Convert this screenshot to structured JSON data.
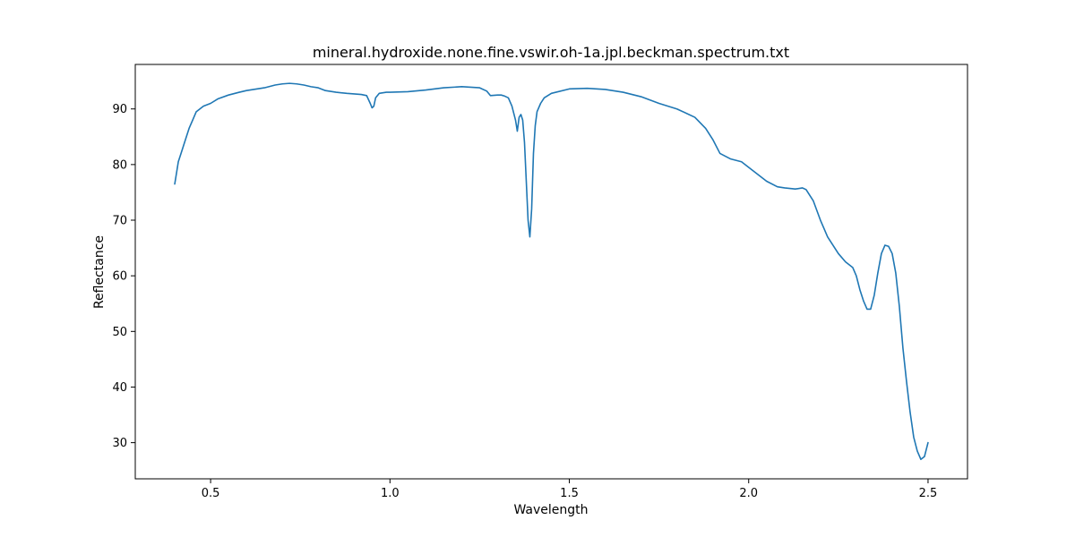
{
  "chart_data": {
    "type": "line",
    "title": "mineral.hydroxide.none.fine.vswir.oh-1a.jpl.beckman.spectrum.txt",
    "xlabel": "Wavelength",
    "ylabel": "Reflectance",
    "xlim": [
      0.29,
      2.61
    ],
    "ylim": [
      23.5,
      98.0
    ],
    "xticks": [
      0.5,
      1.0,
      1.5,
      2.0,
      2.5
    ],
    "xtick_labels": [
      "0.5",
      "1.0",
      "1.5",
      "2.0",
      "2.5"
    ],
    "yticks": [
      30,
      40,
      50,
      60,
      70,
      80,
      90
    ],
    "ytick_labels": [
      "30",
      "40",
      "50",
      "60",
      "70",
      "80",
      "90"
    ],
    "grid": false,
    "legend": "none",
    "line_color": "#1f77b4",
    "series": [
      {
        "x": [
          0.4,
          0.405,
          0.41,
          0.42,
          0.43,
          0.44,
          0.45,
          0.46,
          0.47,
          0.48,
          0.5,
          0.52,
          0.55,
          0.58,
          0.6,
          0.62,
          0.65,
          0.68,
          0.7,
          0.72,
          0.74,
          0.76,
          0.78,
          0.8,
          0.82,
          0.85,
          0.88,
          0.9,
          0.92,
          0.935,
          0.945,
          0.95,
          0.955,
          0.96,
          0.97,
          0.99,
          1.0,
          1.05,
          1.1,
          1.15,
          1.2,
          1.25,
          1.27,
          1.28,
          1.3,
          1.31,
          1.32,
          1.33,
          1.34,
          1.35,
          1.355,
          1.36,
          1.365,
          1.37,
          1.375,
          1.38,
          1.385,
          1.39,
          1.395,
          1.4,
          1.405,
          1.41,
          1.42,
          1.43,
          1.45,
          1.5,
          1.55,
          1.6,
          1.65,
          1.7,
          1.75,
          1.8,
          1.85,
          1.88,
          1.9,
          1.92,
          1.95,
          1.98,
          2.0,
          2.05,
          2.08,
          2.1,
          2.13,
          2.15,
          2.16,
          2.18,
          2.2,
          2.22,
          2.25,
          2.27,
          2.29,
          2.3,
          2.31,
          2.32,
          2.33,
          2.34,
          2.35,
          2.36,
          2.37,
          2.38,
          2.39,
          2.4,
          2.41,
          2.42,
          2.43,
          2.44,
          2.45,
          2.46,
          2.47,
          2.48,
          2.49,
          2.5
        ],
        "y": [
          76.5,
          78.5,
          80.5,
          82.5,
          84.5,
          86.5,
          88.0,
          89.5,
          90.0,
          90.5,
          91.0,
          91.8,
          92.5,
          93.0,
          93.3,
          93.5,
          93.8,
          94.3,
          94.5,
          94.6,
          94.5,
          94.3,
          94.0,
          93.8,
          93.3,
          93.0,
          92.8,
          92.7,
          92.6,
          92.4,
          91.0,
          90.2,
          90.5,
          92.0,
          92.8,
          93.0,
          93.0,
          93.1,
          93.4,
          93.8,
          94.0,
          93.8,
          93.2,
          92.4,
          92.5,
          92.5,
          92.3,
          92.0,
          90.5,
          88.0,
          86.0,
          88.5,
          89.0,
          88.0,
          84.0,
          77.0,
          70.0,
          67.0,
          72.0,
          82.0,
          87.0,
          89.5,
          91.0,
          92.0,
          92.8,
          93.6,
          93.7,
          93.5,
          93.0,
          92.2,
          91.0,
          90.0,
          88.5,
          86.5,
          84.5,
          82.0,
          81.0,
          80.5,
          79.5,
          77.0,
          76.0,
          75.8,
          75.6,
          75.8,
          75.5,
          73.5,
          70.0,
          67.0,
          64.0,
          62.5,
          61.5,
          60.0,
          57.5,
          55.5,
          54.0,
          54.0,
          56.5,
          60.5,
          64.0,
          65.5,
          65.3,
          64.0,
          60.5,
          54.5,
          47.0,
          41.0,
          35.5,
          31.0,
          28.5,
          27.0,
          27.5,
          30.0
        ]
      }
    ]
  }
}
